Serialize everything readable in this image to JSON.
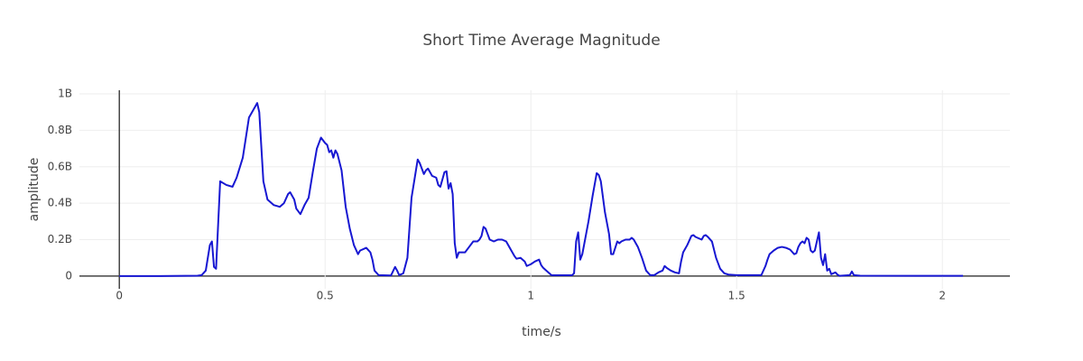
{
  "chart_data": {
    "type": "line",
    "title": "Short Time Average Magnitude",
    "x_label": "time/s",
    "y_label": "amplitude",
    "xlim": [
      -0.097,
      2.164
    ],
    "ylim": [
      -70000000,
      1020000000
    ],
    "xticks": [
      0,
      0.5,
      1,
      1.5,
      2
    ],
    "yticks": [
      0,
      {
        "value": 200000000.0,
        "label": "0.2B"
      },
      {
        "value": 400000000.0,
        "label": "0.4B"
      },
      {
        "value": 600000000.0,
        "label": "0.6B"
      },
      {
        "value": 800000000.0,
        "label": "0.8B"
      },
      {
        "value": 1000000000.0,
        "label": "1B"
      }
    ],
    "grid": true,
    "color": "#1717d2",
    "x": [
      0,
      0.1,
      0.19,
      0.2,
      0.21,
      0.22,
      0.225,
      0.23,
      0.235,
      0.245,
      0.26,
      0.275,
      0.285,
      0.3,
      0.315,
      0.325,
      0.335,
      0.34,
      0.35,
      0.36,
      0.37,
      0.375,
      0.39,
      0.4,
      0.41,
      0.415,
      0.425,
      0.43,
      0.44,
      0.45,
      0.46,
      0.47,
      0.48,
      0.49,
      0.5,
      0.505,
      0.51,
      0.515,
      0.52,
      0.525,
      0.53,
      0.54,
      0.55,
      0.56,
      0.57,
      0.58,
      0.585,
      0.6,
      0.61,
      0.615,
      0.62,
      0.63,
      0.66,
      0.67,
      0.675,
      0.68,
      0.69,
      0.7,
      0.71,
      0.72,
      0.725,
      0.73,
      0.74,
      0.745,
      0.75,
      0.76,
      0.77,
      0.775,
      0.78,
      0.79,
      0.795,
      0.8,
      0.805,
      0.81,
      0.815,
      0.82,
      0.825,
      0.84,
      0.85,
      0.86,
      0.87,
      0.875,
      0.88,
      0.885,
      0.89,
      0.895,
      0.9,
      0.91,
      0.92,
      0.93,
      0.94,
      0.95,
      0.96,
      0.965,
      0.975,
      0.985,
      0.99,
      1.0,
      1.01,
      1.02,
      1.025,
      1.03,
      1.04,
      1.05,
      1.1,
      1.105,
      1.11,
      1.115,
      1.12,
      1.125,
      1.13,
      1.14,
      1.15,
      1.16,
      1.165,
      1.17,
      1.18,
      1.19,
      1.195,
      1.2,
      1.21,
      1.215,
      1.22,
      1.23,
      1.24,
      1.245,
      1.25,
      1.26,
      1.27,
      1.28,
      1.29,
      1.3,
      1.31,
      1.32,
      1.325,
      1.33,
      1.34,
      1.35,
      1.36,
      1.365,
      1.37,
      1.38,
      1.39,
      1.395,
      1.4,
      1.41,
      1.415,
      1.42,
      1.425,
      1.43,
      1.44,
      1.45,
      1.46,
      1.47,
      1.48,
      1.5,
      1.56,
      1.57,
      1.575,
      1.58,
      1.59,
      1.6,
      1.61,
      1.62,
      1.63,
      1.64,
      1.645,
      1.65,
      1.655,
      1.66,
      1.665,
      1.67,
      1.675,
      1.68,
      1.685,
      1.69,
      1.695,
      1.7,
      1.705,
      1.71,
      1.715,
      1.72,
      1.725,
      1.73,
      1.74,
      1.745,
      1.75,
      1.775,
      1.78,
      1.785,
      1.8,
      2.05
    ],
    "values": [
      0,
      0,
      2000000.0,
      5000000.0,
      30000000.0,
      170000000.0,
      190000000.0,
      50000000.0,
      40000000.0,
      520000000.0,
      500000000.0,
      490000000.0,
      540000000.0,
      650000000.0,
      870000000.0,
      910000000.0,
      950000000.0,
      900000000.0,
      520000000.0,
      420000000.0,
      400000000.0,
      390000000.0,
      380000000.0,
      400000000.0,
      450000000.0,
      460000000.0,
      420000000.0,
      370000000.0,
      340000000.0,
      390000000.0,
      430000000.0,
      570000000.0,
      700000000.0,
      760000000.0,
      730000000.0,
      720000000.0,
      680000000.0,
      690000000.0,
      650000000.0,
      690000000.0,
      670000000.0,
      580000000.0,
      380000000.0,
      260000000.0,
      170000000.0,
      120000000.0,
      140000000.0,
      155000000.0,
      130000000.0,
      90000000.0,
      30000000.0,
      5000000.0,
      3000000.0,
      50000000.0,
      30000000.0,
      5000000.0,
      15000000.0,
      100000000.0,
      430000000.0,
      570000000.0,
      640000000.0,
      620000000.0,
      560000000.0,
      580000000.0,
      590000000.0,
      550000000.0,
      540000000.0,
      500000000.0,
      490000000.0,
      570000000.0,
      575000000.0,
      480000000.0,
      510000000.0,
      450000000.0,
      180000000.0,
      100000000.0,
      130000000.0,
      130000000.0,
      160000000.0,
      190000000.0,
      190000000.0,
      200000000.0,
      220000000.0,
      270000000.0,
      260000000.0,
      230000000.0,
      200000000.0,
      190000000.0,
      200000000.0,
      200000000.0,
      190000000.0,
      150000000.0,
      110000000.0,
      95000000.0,
      100000000.0,
      80000000.0,
      55000000.0,
      65000000.0,
      80000000.0,
      90000000.0,
      60000000.0,
      45000000.0,
      25000000.0,
      5000000.0,
      4000000.0,
      15000000.0,
      190000000.0,
      240000000.0,
      90000000.0,
      120000000.0,
      180000000.0,
      300000000.0,
      440000000.0,
      565000000.0,
      555000000.0,
      520000000.0,
      350000000.0,
      230000000.0,
      120000000.0,
      120000000.0,
      190000000.0,
      180000000.0,
      190000000.0,
      200000000.0,
      200000000.0,
      210000000.0,
      200000000.0,
      160000000.0,
      100000000.0,
      30000000.0,
      5000000.0,
      5000000.0,
      20000000.0,
      30000000.0,
      55000000.0,
      45000000.0,
      30000000.0,
      20000000.0,
      15000000.0,
      80000000.0,
      130000000.0,
      170000000.0,
      220000000.0,
      225000000.0,
      215000000.0,
      205000000.0,
      200000000.0,
      220000000.0,
      225000000.0,
      215000000.0,
      190000000.0,
      100000000.0,
      40000000.0,
      15000000.0,
      8000000.0,
      5000000.0,
      5000000.0,
      55000000.0,
      90000000.0,
      120000000.0,
      140000000.0,
      155000000.0,
      160000000.0,
      155000000.0,
      145000000.0,
      120000000.0,
      125000000.0,
      160000000.0,
      180000000.0,
      190000000.0,
      180000000.0,
      210000000.0,
      200000000.0,
      140000000.0,
      130000000.0,
      140000000.0,
      190000000.0,
      240000000.0,
      100000000.0,
      60000000.0,
      120000000.0,
      30000000.0,
      40000000.0,
      10000000.0,
      20000000.0,
      8000000.0,
      1000000.0,
      5000000.0,
      25000000.0,
      5000000.0,
      2000000.0,
      1000000.0
    ]
  }
}
